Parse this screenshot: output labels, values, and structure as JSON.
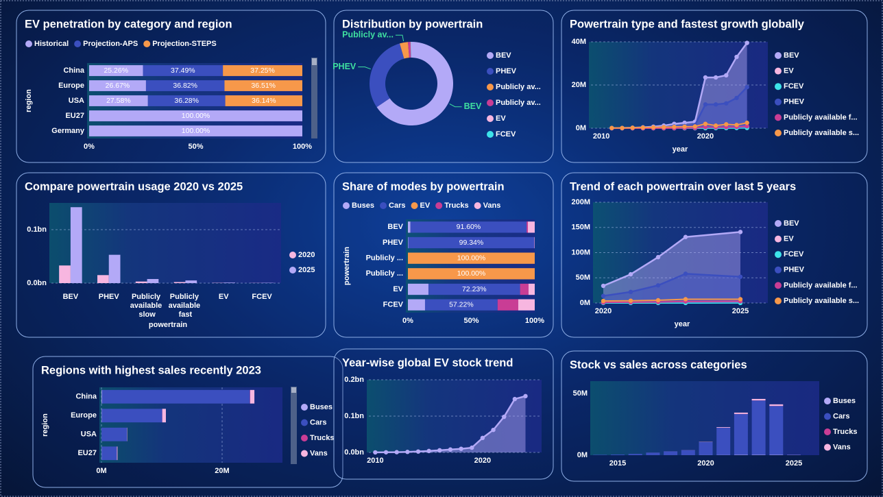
{
  "chart_data": [
    {
      "type": "bar",
      "orientation": "horizontal",
      "stacked": true,
      "title": "EV penetration by category and region",
      "y_label": "region",
      "categories": [
        "China",
        "Europe",
        "USA",
        "EU27",
        "Germany"
      ],
      "series": [
        {
          "name": "Historical",
          "color": "#b3a9f7",
          "values": [
            25.26,
            26.67,
            27.58,
            100,
            100
          ],
          "value_labels": [
            "25.26%",
            "26.67%",
            "27.58%",
            "100.00%",
            "100.00%"
          ]
        },
        {
          "name": "Projection-APS",
          "color": "#3b4fbf",
          "values": [
            37.49,
            36.82,
            36.28,
            0,
            0
          ],
          "value_labels": [
            "37.49%",
            "36.82%",
            "36.28%",
            null,
            null
          ]
        },
        {
          "name": "Projection-STEPS",
          "color": "#f7984a",
          "values": [
            37.25,
            36.51,
            36.14,
            0,
            0
          ],
          "value_labels": [
            "37.25%",
            "36.51%",
            "36.14%",
            null,
            null
          ]
        }
      ],
      "xlim": [
        0,
        100
      ],
      "xticks": [
        {
          "value": 0,
          "label": "0%"
        },
        {
          "value": 50,
          "label": "50%"
        },
        {
          "value": 100,
          "label": "100%"
        }
      ],
      "grid": false,
      "legend": "top"
    },
    {
      "type": "donut",
      "title": "Distribution by powertrain",
      "categories": [
        "BEV",
        "PHEV",
        "Publicly av...",
        "Publicly av...",
        "EV",
        "FCEV"
      ],
      "values": [
        65.5,
        30,
        3.2,
        1,
        0.2,
        0.1
      ],
      "colors": [
        "#b3a9f7",
        "#3b4fbf",
        "#f7984a",
        "#c93d95",
        "#f7b6e0",
        "#3de3ea"
      ],
      "legend": "right"
    },
    {
      "type": "line",
      "title": "Powertrain type and fastest growth globally",
      "x_label": "year",
      "x": [
        2011,
        2012,
        2013,
        2014,
        2015,
        2016,
        2017,
        2018,
        2019,
        2020,
        2021,
        2022,
        2023,
        2024
      ],
      "series": [
        {
          "name": "BEV",
          "color": "#b3a9f7",
          "fill": true,
          "values": [
            0.05,
            0.1,
            0.2,
            0.4,
            0.7,
            1.2,
            2,
            2.5,
            3,
            23.5,
            23.5,
            24.5,
            33,
            39.5
          ]
        },
        {
          "name": "EV",
          "color": "#f7b6e0",
          "fill": false,
          "values": [
            0,
            0,
            0,
            0,
            0,
            0,
            0,
            0,
            0,
            0.3,
            0.3,
            0.4,
            0.5,
            0.6
          ]
        },
        {
          "name": "FCEV",
          "color": "#3de3ea",
          "fill": false,
          "values": [
            0,
            0,
            0,
            0,
            0,
            0,
            0,
            0,
            0,
            0.02,
            0.03,
            0.05,
            0.07,
            0.1
          ]
        },
        {
          "name": "PHEV",
          "color": "#3b4fbf",
          "fill": true,
          "values": [
            0.02,
            0.05,
            0.1,
            0.2,
            0.3,
            0.5,
            0.8,
            1,
            1.5,
            11,
            11,
            11.5,
            14,
            19
          ]
        },
        {
          "name": "Publicly available f...",
          "color": "#c93d95",
          "fill": false,
          "values": [
            0,
            0,
            0,
            0,
            0,
            0,
            0,
            0.1,
            0.1,
            0.5,
            0.4,
            0.5,
            0.6,
            0.9
          ]
        },
        {
          "name": "Publicly available s...",
          "color": "#f7984a",
          "fill": false,
          "values": [
            0.1,
            0.1,
            0.2,
            0.3,
            0.4,
            0.5,
            0.6,
            0.7,
            0.8,
            2,
            1.2,
            1.8,
            1.5,
            2.5
          ]
        }
      ],
      "xlim": [
        2009,
        2026
      ],
      "xticks": [
        2010,
        2020
      ],
      "ylim": [
        0,
        40
      ],
      "yticks": [
        {
          "value": 0,
          "label": "0M"
        },
        {
          "value": 20,
          "label": "20M"
        },
        {
          "value": 40,
          "label": "40M"
        }
      ],
      "grid": true,
      "legend": "right"
    },
    {
      "type": "bar",
      "orientation": "vertical",
      "stacked": false,
      "title": "Compare powertrain usage 2020 vs 2025",
      "x_label": "powertrain",
      "categories": [
        "BEV",
        "PHEV",
        "Publicly available slow",
        "Publicly available fast",
        "EV",
        "FCEV"
      ],
      "series": [
        {
          "name": "2020",
          "color": "#f7b6e0",
          "values": [
            0.033,
            0.015,
            0.003,
            0.002,
            0.0005,
            0.0003
          ]
        },
        {
          "name": "2025",
          "color": "#b3a9f7",
          "values": [
            0.142,
            0.053,
            0.0077,
            0.005,
            0.001,
            0.0006
          ]
        }
      ],
      "ylim": [
        0,
        0.15
      ],
      "yticks": [
        {
          "value": 0,
          "label": "0.0bn"
        },
        {
          "value": 0.1,
          "label": "0.1bn"
        }
      ],
      "grid": true,
      "legend": "right"
    },
    {
      "type": "bar",
      "orientation": "horizontal",
      "stacked": true,
      "title": "Share of modes by powertrain",
      "y_label": "powertrain",
      "categories": [
        "BEV",
        "PHEV",
        "Publicly ...",
        "Publicly ...",
        "EV",
        "FCEV"
      ],
      "series": [
        {
          "name": "Buses",
          "color": "#b3a9f7",
          "values": [
            2,
            0.3,
            0,
            0,
            16.2,
            13.5
          ]
        },
        {
          "name": "Cars",
          "color": "#3b4fbf",
          "values": [
            91.6,
            99.34,
            0,
            0,
            72.23,
            57.22
          ],
          "value_labels": [
            "91.60%",
            "99.34%",
            null,
            null,
            "72.23%",
            "57.22%"
          ]
        },
        {
          "name": "EV",
          "color": "#f7984a",
          "values": [
            0,
            0,
            100,
            100,
            0,
            0
          ],
          "value_labels": [
            null,
            null,
            "100.00%",
            "100.00%",
            null,
            null
          ]
        },
        {
          "name": "Trucks",
          "color": "#c93d95",
          "values": [
            1,
            0.1,
            0,
            0,
            6.67,
            16.28
          ]
        },
        {
          "name": "Vans",
          "color": "#f7b6e0",
          "values": [
            5.4,
            0.26,
            0,
            0,
            4.9,
            13
          ]
        }
      ],
      "xlim": [
        0,
        100
      ],
      "xticks": [
        {
          "value": 0,
          "label": "0%"
        },
        {
          "value": 50,
          "label": "50%"
        },
        {
          "value": 100,
          "label": "100%"
        }
      ],
      "grid": false,
      "legend": "top"
    },
    {
      "type": "line",
      "title": "Trend of each powertrain over last 5 years",
      "x_label": "year",
      "x": [
        2020,
        2021,
        2022,
        2023,
        2025
      ],
      "series": [
        {
          "name": "BEV",
          "color": "#b3a9f7",
          "fill": true,
          "values": [
            34,
            57,
            91,
            131,
            141
          ]
        },
        {
          "name": "EV",
          "color": "#f7b6e0",
          "fill": false,
          "values": [
            0.5,
            0.7,
            1,
            1.2,
            1.5
          ]
        },
        {
          "name": "FCEV",
          "color": "#3de3ea",
          "fill": false,
          "values": [
            0.05,
            0.06,
            0.07,
            0.08,
            0.1
          ]
        },
        {
          "name": "PHEV",
          "color": "#3b4fbf",
          "fill": true,
          "values": [
            14,
            22,
            35,
            58,
            52
          ]
        },
        {
          "name": "Publicly available f...",
          "color": "#c93d95",
          "fill": false,
          "values": [
            1,
            1.5,
            2,
            3,
            3.5
          ]
        },
        {
          "name": "Publicly available s...",
          "color": "#f7984a",
          "fill": false,
          "values": [
            4,
            4.5,
            5.5,
            7.5,
            7.5
          ]
        }
      ],
      "xlim": [
        2019.7,
        2026
      ],
      "xticks": [
        2020,
        2025
      ],
      "ylim": [
        0,
        200
      ],
      "yticks": [
        {
          "value": 0,
          "label": "0M"
        },
        {
          "value": 50,
          "label": "50M"
        },
        {
          "value": 100,
          "label": "100M"
        },
        {
          "value": 150,
          "label": "150M"
        },
        {
          "value": 200,
          "label": "200M"
        }
      ],
      "grid": true,
      "legend": "right"
    },
    {
      "type": "bar",
      "orientation": "horizontal",
      "stacked": true,
      "title": "Regions with highest sales recently 2023",
      "y_label": "region",
      "categories": [
        "China",
        "Europe",
        "USA",
        "EU27"
      ],
      "series": [
        {
          "name": "Buses",
          "color": "#b3a9f7",
          "values": [
            0.1,
            0.05,
            0.01,
            0.04
          ]
        },
        {
          "name": "Cars",
          "color": "#3b4fbf",
          "values": [
            24.5,
            10,
            4.2,
            2.5
          ]
        },
        {
          "name": "Trucks",
          "color": "#c93d95",
          "values": [
            0.05,
            0.03,
            0.01,
            0.02
          ]
        },
        {
          "name": "Vans",
          "color": "#f7b6e0",
          "values": [
            0.7,
            0.6,
            0.05,
            0.1
          ]
        }
      ],
      "xlim": [
        0,
        30
      ],
      "xticks": [
        {
          "value": 0,
          "label": "0M"
        },
        {
          "value": 20,
          "label": "20M"
        }
      ],
      "grid": true,
      "legend": "right"
    },
    {
      "type": "line",
      "title": "Year-wise global EV stock trend",
      "x": [
        2010,
        2011,
        2012,
        2013,
        2014,
        2015,
        2016,
        2017,
        2018,
        2019,
        2020,
        2021,
        2022,
        2023,
        2024
      ],
      "values": [
        0.0002,
        0.0004,
        0.0008,
        0.0015,
        0.0025,
        0.004,
        0.006,
        0.008,
        0.01,
        0.013,
        0.04,
        0.062,
        0.098,
        0.147,
        0.155
      ],
      "color": "#b3a9f7",
      "fill": true,
      "xlim": [
        2009.4,
        2025.5
      ],
      "xticks": [
        2010,
        2020
      ],
      "ylim": [
        0,
        0.2
      ],
      "yticks": [
        {
          "value": 0,
          "label": "0.0bn"
        },
        {
          "value": 0.1,
          "label": "0.1bn"
        },
        {
          "value": 0.2,
          "label": "0.2bn"
        }
      ],
      "grid": true
    },
    {
      "type": "bar",
      "orientation": "vertical",
      "stacked": true,
      "title": "Stock vs sales across categories",
      "x": [
        2014,
        2015,
        2016,
        2017,
        2018,
        2019,
        2020,
        2021,
        2022,
        2023,
        2024,
        2025
      ],
      "series": [
        {
          "name": "Buses",
          "color": "#b3a9f7",
          "values": [
            0.01,
            0.02,
            0.03,
            0.05,
            0.07,
            0.1,
            0.15,
            0.2,
            0.3,
            0.3,
            0.3,
            0.01
          ]
        },
        {
          "name": "Cars",
          "color": "#3b4fbf",
          "values": [
            0.3,
            0.5,
            1,
            2,
            3,
            4,
            10.5,
            22,
            33,
            44,
            39.5,
            0.3
          ]
        },
        {
          "name": "Trucks",
          "color": "#c93d95",
          "values": [
            0,
            0,
            0,
            0.01,
            0.01,
            0.02,
            0.03,
            0.05,
            0.1,
            0.1,
            0.1,
            0
          ]
        },
        {
          "name": "Vans",
          "color": "#f7b6e0",
          "values": [
            0,
            0,
            0.01,
            0.02,
            0.03,
            0.05,
            0.2,
            0.5,
            1.1,
            1.2,
            1.3,
            0.1
          ]
        }
      ],
      "xlim": [
        2013.56,
        2026.44
      ],
      "xticks": [
        2015,
        2020,
        2025
      ],
      "ylim": [
        0,
        60
      ],
      "yticks": [
        {
          "value": 0,
          "label": "0M"
        },
        {
          "value": 50,
          "label": "50M"
        }
      ],
      "grid": false,
      "legend": "right"
    }
  ]
}
